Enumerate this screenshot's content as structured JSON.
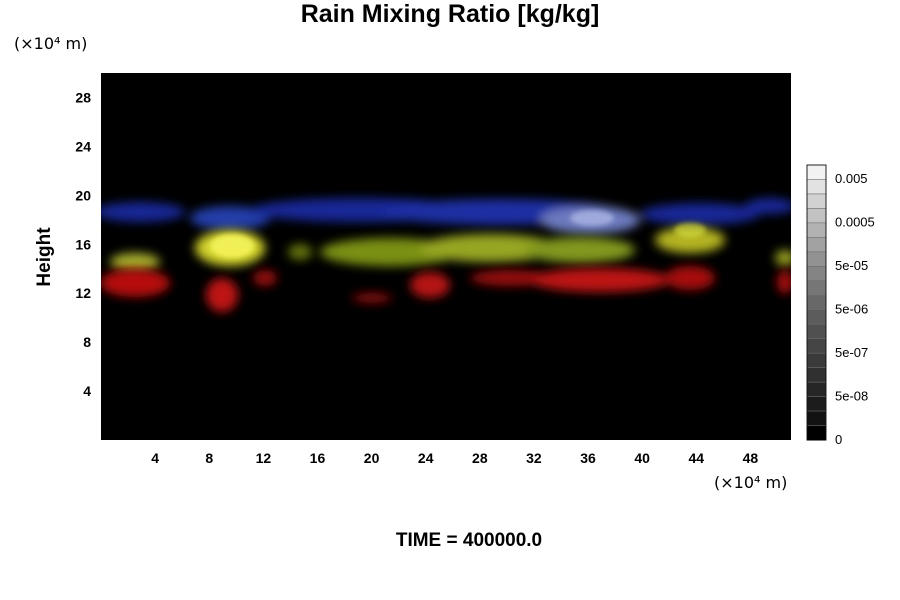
{
  "chart_data": {
    "type": "heatmap",
    "title": "Rain Mixing Ratio [kg/kg]",
    "xlabel": "",
    "ylabel": "Height",
    "x_unit": "(×10⁴ m)",
    "y_unit": "(×10⁴ m)",
    "xlim": [
      0,
      51
    ],
    "ylim": [
      0,
      30
    ],
    "x_ticks": [
      4,
      8,
      12,
      16,
      20,
      24,
      28,
      32,
      36,
      40,
      44,
      48
    ],
    "y_ticks": [
      4,
      8,
      12,
      16,
      20,
      24,
      28
    ],
    "background": "#000000",
    "layers": [
      {
        "color": "#1830c0",
        "height_range": [
          16.5,
          20
        ]
      },
      {
        "color": "#a8c020",
        "height_range": [
          13.5,
          17.5
        ]
      },
      {
        "color": "#c81010",
        "height_range": [
          11,
          14
        ]
      }
    ],
    "colorbar": {
      "labels": [
        "0.005",
        "0.0005",
        "5e-05",
        "5e-06",
        "5e-07",
        "5e-08",
        "0"
      ],
      "colors": [
        "#f2f2f2",
        "#e2e2e2",
        "#d2d2d2",
        "#c2c2c2",
        "#b2b2b2",
        "#a2a2a2",
        "#929292",
        "#848484",
        "#767676",
        "#686868",
        "#5c5c5c",
        "#505050",
        "#454545",
        "#3a3a3a",
        "#303030",
        "#262626",
        "#1c1c1c",
        "#121212",
        "#000000"
      ]
    },
    "annotation": "TIME = 400000.0"
  }
}
